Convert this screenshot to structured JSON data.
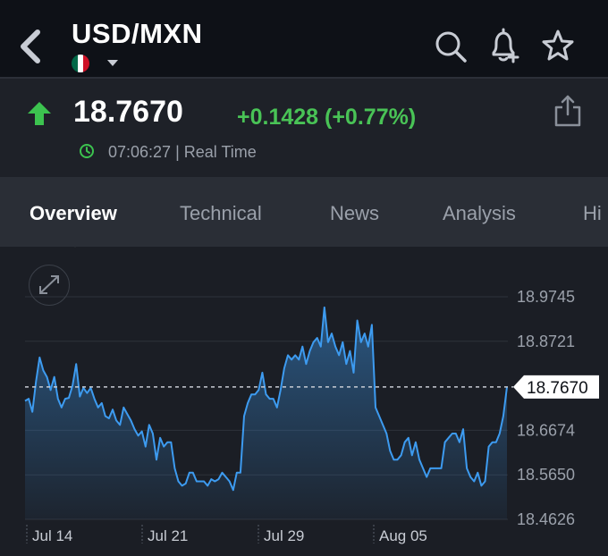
{
  "header": {
    "title": "USD/MXN",
    "flag_colors": [
      "#006847",
      "#ffffff",
      "#ce1126"
    ],
    "icons": [
      "back-chevron-icon",
      "search-icon",
      "bell-plus-icon",
      "star-icon"
    ]
  },
  "quote": {
    "price": "18.7670",
    "change": "+0.1428 (+0.77%)",
    "time": "07:06:27 | Real Time",
    "direction": "up",
    "up_color": "#49c356"
  },
  "tabs": [
    {
      "label": "Overview",
      "active": true
    },
    {
      "label": "Technical",
      "active": false
    },
    {
      "label": "News",
      "active": false
    },
    {
      "label": "Analysis",
      "active": false
    },
    {
      "label": "Hi",
      "active": false
    }
  ],
  "chart_data": {
    "type": "area",
    "line_color": "#3d9bf0",
    "y_ticks": [
      "18.9745",
      "18.8721",
      "18.6674",
      "18.5650",
      "18.4626"
    ],
    "ylim": [
      18.4626,
      18.9745
    ],
    "current_value": "18.7670",
    "x_ticks": [
      "Jul 14",
      "Jul 21",
      "Jul 29",
      "Aug 05"
    ],
    "grid": true,
    "values": [
      18.735,
      18.74,
      18.71,
      18.78,
      18.835,
      18.805,
      18.79,
      18.76,
      18.79,
      18.74,
      18.72,
      18.74,
      18.742,
      18.77,
      18.82,
      18.745,
      18.765,
      18.753,
      18.765,
      18.74,
      18.72,
      18.73,
      18.7,
      18.695,
      18.715,
      18.69,
      18.68,
      18.72,
      18.705,
      18.69,
      18.67,
      18.655,
      18.665,
      18.63,
      18.68,
      18.66,
      18.6,
      18.65,
      18.63,
      18.64,
      18.64,
      18.58,
      18.55,
      18.54,
      18.545,
      18.57,
      18.57,
      18.55,
      18.55,
      18.55,
      18.54,
      18.555,
      18.55,
      18.555,
      18.57,
      18.56,
      18.55,
      18.53,
      18.57,
      18.57,
      18.7,
      18.73,
      18.75,
      18.75,
      18.76,
      18.8,
      18.75,
      18.74,
      18.74,
      18.72,
      18.76,
      18.81,
      18.84,
      18.83,
      18.84,
      18.83,
      18.86,
      18.82,
      18.85,
      18.87,
      18.88,
      18.86,
      18.95,
      18.87,
      18.89,
      18.86,
      18.84,
      18.87,
      18.82,
      18.85,
      18.8,
      18.92,
      18.87,
      18.89,
      18.86,
      18.91,
      18.72,
      18.7,
      18.68,
      18.66,
      18.62,
      18.6,
      18.6,
      18.61,
      18.64,
      18.65,
      18.61,
      18.64,
      18.6,
      18.58,
      18.56,
      18.58,
      18.58,
      18.58,
      18.58,
      18.64,
      18.65,
      18.66,
      18.66,
      18.64,
      18.67,
      18.58,
      18.56,
      18.55,
      18.57,
      18.54,
      18.55,
      18.63,
      18.64,
      18.64,
      18.66,
      18.7,
      18.767
    ]
  }
}
